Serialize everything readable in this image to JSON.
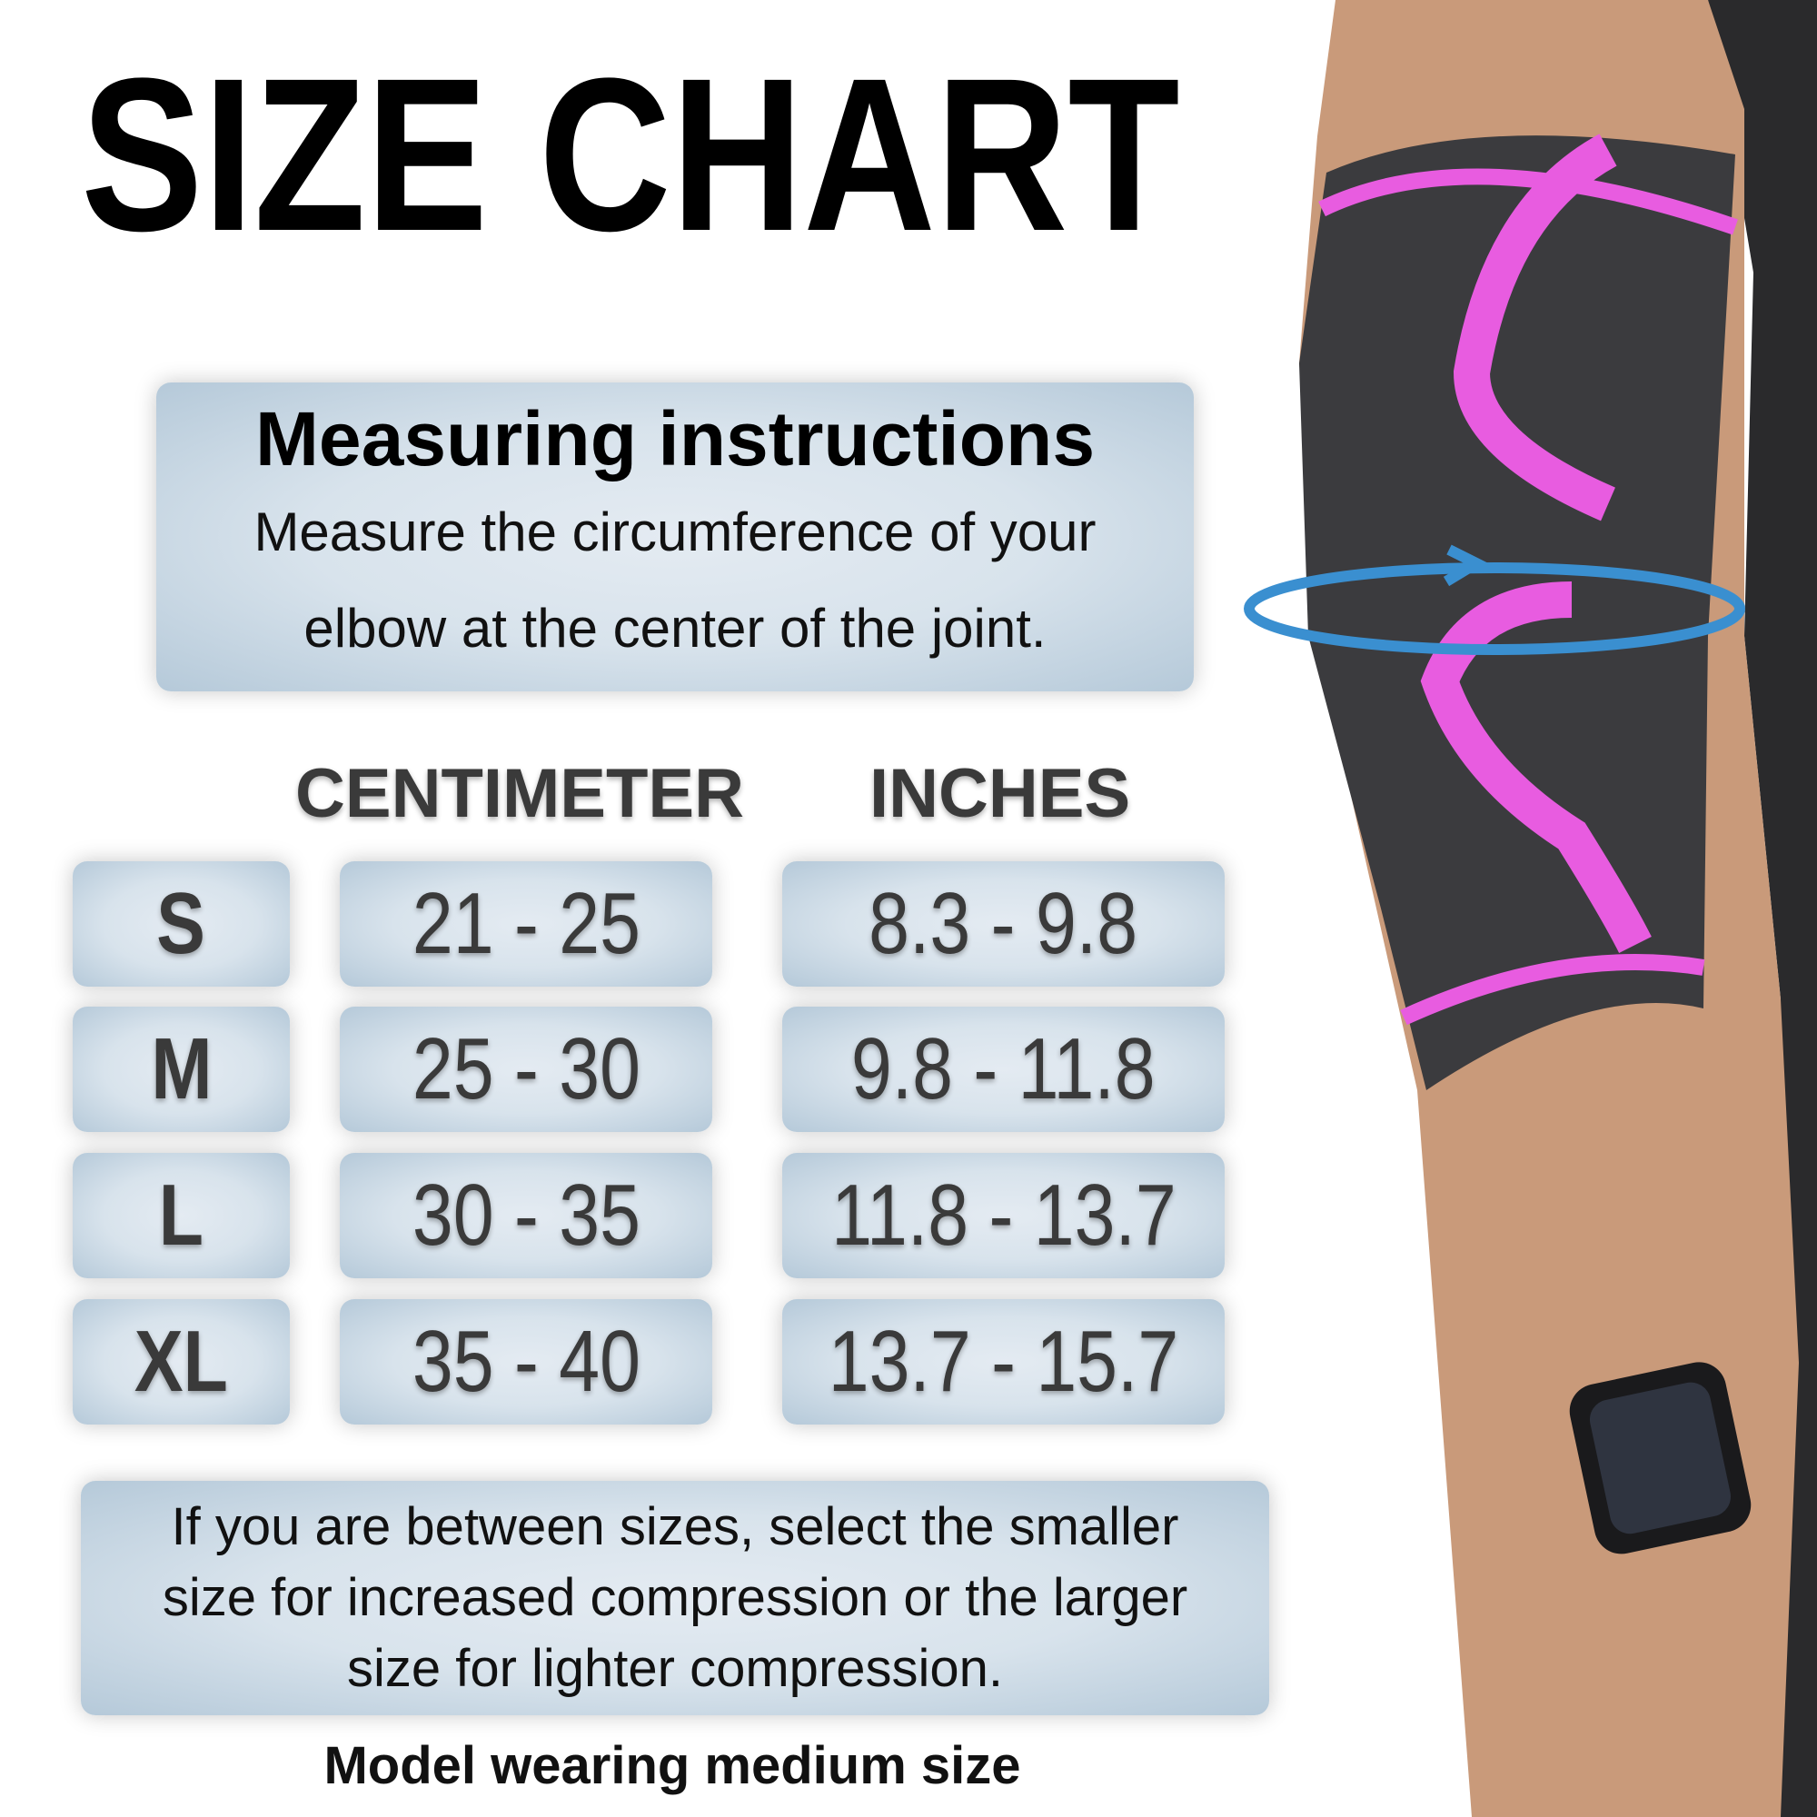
{
  "title": "SIZE CHART",
  "instructions": {
    "heading": "Measuring instructions",
    "line1": "Measure the circumference of your",
    "line2": "elbow at the center of the joint."
  },
  "columns": {
    "cm": "CENTIMETER",
    "inches": "INCHES"
  },
  "rows": [
    {
      "size": "S",
      "cm": "21 - 25",
      "inches": "8.3 - 9.8"
    },
    {
      "size": "M",
      "cm": "25 - 30",
      "inches": "9.8 - 11.8"
    },
    {
      "size": "L",
      "cm": "30 - 35",
      "inches": "11.8 - 13.7"
    },
    {
      "size": "XL",
      "cm": "35 - 40",
      "inches": "13.7 - 15.7"
    }
  ],
  "note": {
    "line1": "If you are between sizes, select the smaller",
    "line2": "size for increased compression or the larger",
    "line3": "size for lighter compression."
  },
  "model_caption": "Model wearing medium size",
  "colors": {
    "box": "#c9d8e4",
    "text": "#3a3a3a",
    "sleeve": "#3b3b3e",
    "stripe": "#e85ce0",
    "arrow": "#3a8fd0"
  }
}
